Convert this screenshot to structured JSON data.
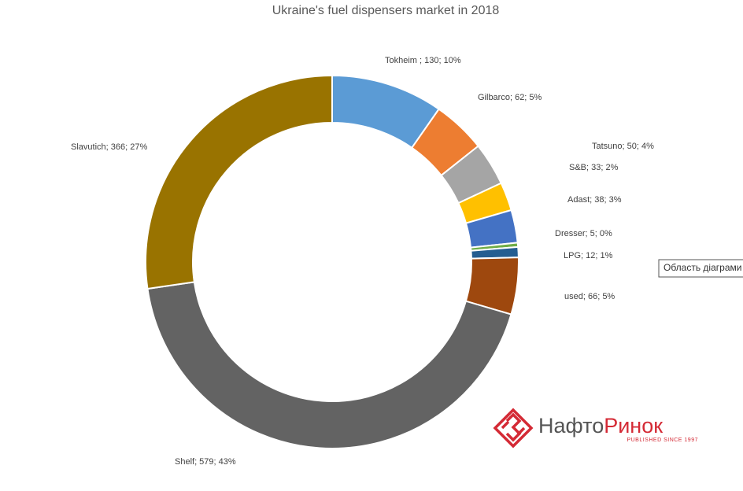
{
  "chart_data": {
    "type": "donut",
    "title": "Ukraine's fuel dispensers market in 2018",
    "categories": [
      "Tokheim",
      "Gilbarco",
      "Tatsuno",
      "S&B",
      "Adast",
      "Dresser",
      "LPG",
      "used",
      "Shelf",
      "Slavutich"
    ],
    "values": [
      130,
      62,
      50,
      33,
      38,
      5,
      12,
      66,
      579,
      366
    ],
    "value_labels": [
      "Tokheim ; 130; 10%",
      "Gilbarco; 62; 5%",
      "Tatsuno; 50; 4%",
      "S&B; 33; 2%",
      "Adast; 38; 3%",
      "Dresser; 5; 0%",
      "LPG; 12; 1%",
      "used; 66; 5%",
      "Shelf; 579; 43%",
      "Slavutich; 366; 27%"
    ],
    "colors": [
      "#5b9bd5",
      "#ed7d31",
      "#a5a5a5",
      "#ffc000",
      "#4472c4",
      "#70ad47",
      "#255e91",
      "#9e480e",
      "#636363",
      "#997300"
    ]
  },
  "tooltip": "Область діаграми",
  "logo": {
    "text": [
      "Нафто",
      "Ринок"
    ],
    "tagline": "PUBLISHED SINCE 1997"
  }
}
